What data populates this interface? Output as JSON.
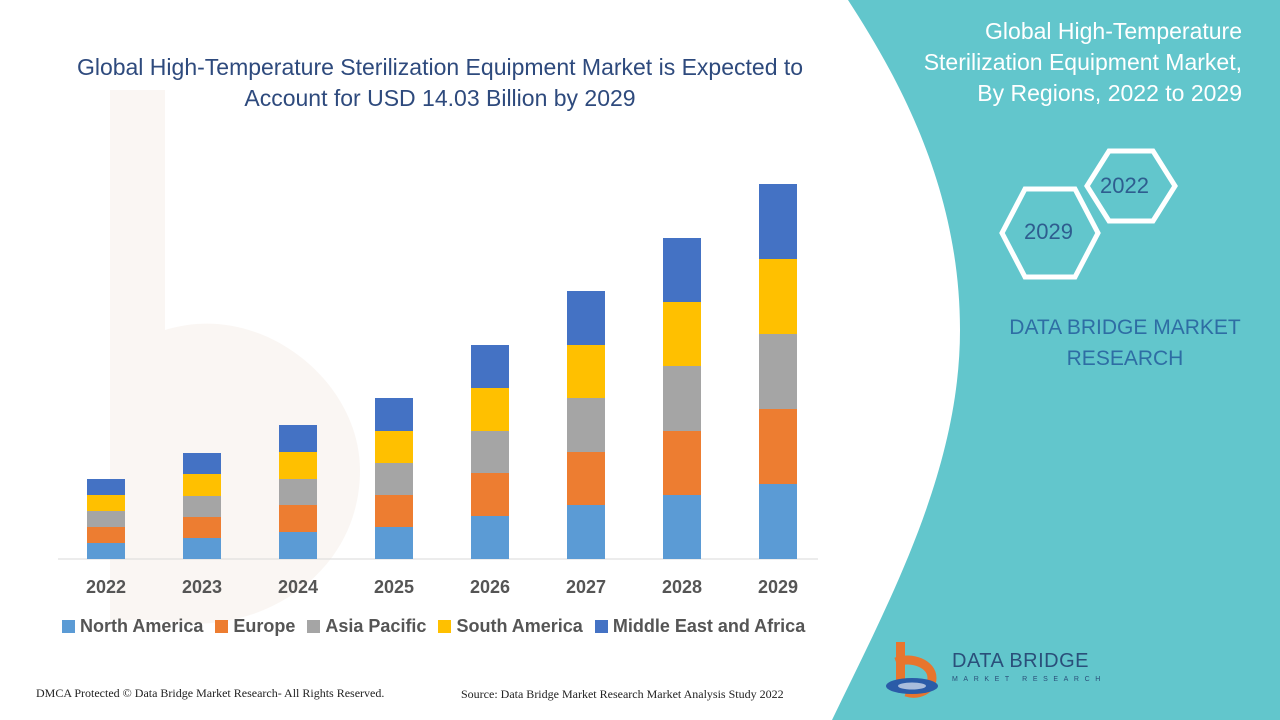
{
  "chart_data": {
    "type": "bar",
    "stacked": true,
    "title": "Global High-Temperature Sterilization Equipment Market is Expected to Account for USD 14.03 Billion by 2029",
    "categories": [
      "2022",
      "2023",
      "2024",
      "2025",
      "2026",
      "2027",
      "2028",
      "2029"
    ],
    "series": [
      {
        "name": "North America",
        "color": "#5b9bd5",
        "values": [
          16,
          21,
          27,
          32,
          43,
          54,
          64,
          75
        ]
      },
      {
        "name": "Europe",
        "color": "#ed7d31",
        "values": [
          16,
          21,
          27,
          32,
          43,
          53,
          64,
          75
        ]
      },
      {
        "name": "Asia Pacific",
        "color": "#a5a5a5",
        "values": [
          16,
          21,
          26,
          32,
          42,
          54,
          65,
          75
        ]
      },
      {
        "name": "South America",
        "color": "#ffc000",
        "values": [
          16,
          22,
          27,
          32,
          43,
          53,
          64,
          75
        ]
      },
      {
        "name": "Middle East and Africa",
        "color": "#4472c4",
        "values": [
          16,
          21,
          27,
          33,
          43,
          54,
          64,
          75
        ]
      }
    ],
    "ylim": [
      0,
      400
    ],
    "grid": false,
    "legend_position": "bottom"
  },
  "side_panel": {
    "title": "Global High-Temperature Sterilization Equipment Market, By Regions, 2022 to 2029",
    "hex_start": "2022",
    "hex_end": "2029",
    "brand": "DATA BRIDGE MARKET RESEARCH",
    "accent_color": "#62c6cc"
  },
  "footer": {
    "left": "DMCA Protected © Data Bridge Market Research- All Rights Reserved.",
    "right": "Source: Data Bridge Market Research Market Analysis Study 2022"
  },
  "logo": {
    "name": "DATA BRIDGE",
    "tagline": "MARKET RESEARCH"
  }
}
